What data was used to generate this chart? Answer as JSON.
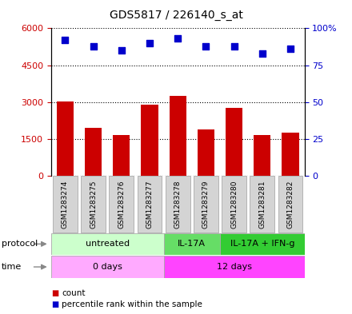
{
  "title": "GDS5817 / 226140_s_at",
  "samples": [
    "GSM1283274",
    "GSM1283275",
    "GSM1283276",
    "GSM1283277",
    "GSM1283278",
    "GSM1283279",
    "GSM1283280",
    "GSM1283281",
    "GSM1283282"
  ],
  "counts": [
    3020,
    1950,
    1650,
    2900,
    3250,
    1900,
    2750,
    1650,
    1750
  ],
  "percentile_ranks": [
    92,
    88,
    85,
    90,
    93,
    88,
    88,
    83,
    86
  ],
  "bar_color": "#cc0000",
  "dot_color": "#0000cc",
  "ylim_left": [
    0,
    6000
  ],
  "ylim_right": [
    0,
    100
  ],
  "yticks_left": [
    0,
    1500,
    3000,
    4500,
    6000
  ],
  "ytick_labels_left": [
    "0",
    "1500",
    "3000",
    "4500",
    "6000"
  ],
  "yticks_right": [
    0,
    25,
    50,
    75,
    100
  ],
  "ytick_labels_right": [
    "0",
    "25",
    "50",
    "75",
    "100%"
  ],
  "protocol_groups": [
    {
      "label": "untreated",
      "start": 0,
      "end": 4,
      "color": "#ccffcc"
    },
    {
      "label": "IL-17A",
      "start": 4,
      "end": 6,
      "color": "#66dd66"
    },
    {
      "label": "IL-17A + IFN-g",
      "start": 6,
      "end": 9,
      "color": "#33cc33"
    }
  ],
  "time_groups": [
    {
      "label": "0 days",
      "start": 0,
      "end": 4,
      "color": "#ffaaff"
    },
    {
      "label": "12 days",
      "start": 4,
      "end": 9,
      "color": "#ff44ff"
    }
  ],
  "protocol_label": "protocol",
  "time_label": "time",
  "legend_count_label": "count",
  "legend_percentile_label": "percentile rank within the sample",
  "background_color": "#ffffff",
  "grid_color": "#000000",
  "tick_label_color_left": "#cc0000",
  "tick_label_color_right": "#0000cc",
  "sample_box_color": "#d4d4d4",
  "sample_box_edge": "#aaaaaa"
}
